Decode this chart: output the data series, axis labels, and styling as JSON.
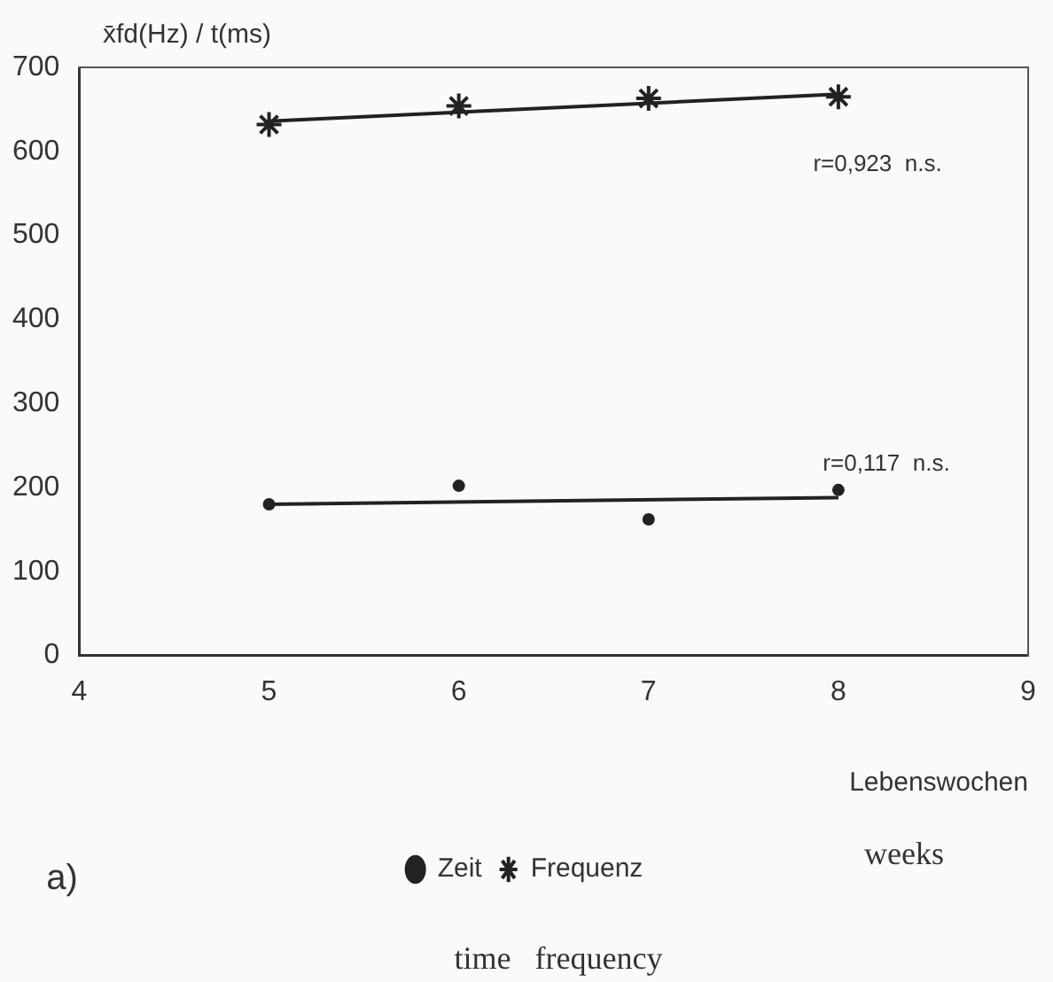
{
  "chart_data": {
    "type": "scatter",
    "ylabel": "x̄fd(Hz) / t(ms)",
    "xlabel": "Lebenswochen",
    "xlim": [
      4,
      9
    ],
    "xticks": [
      4,
      5,
      6,
      7,
      8,
      9
    ],
    "ylim": [
      0,
      700
    ],
    "yticks": [
      0,
      100,
      200,
      300,
      400,
      500,
      600,
      700
    ],
    "grid": false,
    "legend": "bottom",
    "series": [
      {
        "name": "Zeit",
        "marker": "circle",
        "color": "#222222",
        "x": [
          5,
          6,
          7,
          8
        ],
        "values": [
          180,
          202,
          162,
          197
        ]
      },
      {
        "name": "Frequenz",
        "marker": "cross",
        "color": "#222222",
        "x": [
          5,
          6,
          7,
          8
        ],
        "values": [
          632,
          654,
          663,
          665
        ]
      },
      {
        "type": "line",
        "marker": "none",
        "color": "#222222",
        "x": [
          5,
          8
        ],
        "values": [
          636,
          668
        ]
      },
      {
        "type": "line",
        "marker": "none",
        "color": "#222222",
        "x": [
          5,
          8
        ],
        "values": [
          180,
          188
        ]
      }
    ],
    "annotations": [
      "r=0,923  n.s.",
      "r=0,117  n.s.",
      "weeks",
      "a)",
      "time   frequency"
    ]
  }
}
